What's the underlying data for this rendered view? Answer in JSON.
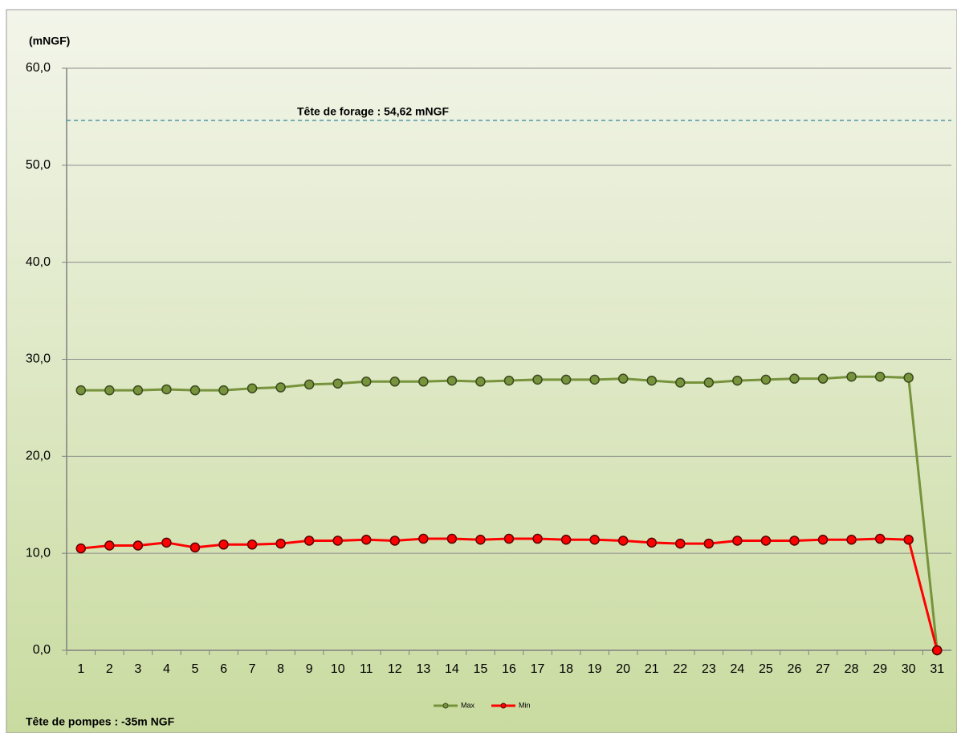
{
  "chart_data": {
    "type": "line",
    "y_axis_label": "(mNGF)",
    "categories": [
      "1",
      "2",
      "3",
      "4",
      "5",
      "6",
      "7",
      "8",
      "9",
      "10",
      "11",
      "12",
      "13",
      "14",
      "15",
      "16",
      "17",
      "18",
      "19",
      "20",
      "21",
      "22",
      "23",
      "24",
      "25",
      "26",
      "27",
      "28",
      "29",
      "30",
      "31"
    ],
    "series": [
      {
        "name": "Max",
        "color": "#77933c",
        "values": [
          26.8,
          26.8,
          26.8,
          26.9,
          26.8,
          26.8,
          27.0,
          27.1,
          27.4,
          27.5,
          27.7,
          27.7,
          27.7,
          27.8,
          27.7,
          27.8,
          27.9,
          27.9,
          27.9,
          28.0,
          27.8,
          27.6,
          27.6,
          27.8,
          27.9,
          28.0,
          28.0,
          28.2,
          28.2,
          28.1,
          0
        ]
      },
      {
        "name": "Min",
        "color": "#ff0000",
        "values": [
          10.5,
          10.8,
          10.8,
          11.1,
          10.6,
          10.9,
          10.9,
          11.0,
          11.3,
          11.3,
          11.4,
          11.3,
          11.5,
          11.5,
          11.4,
          11.5,
          11.5,
          11.4,
          11.4,
          11.3,
          11.1,
          11.0,
          11.0,
          11.3,
          11.3,
          11.3,
          11.4,
          11.4,
          11.5,
          11.4,
          0
        ]
      }
    ],
    "ylim": [
      0,
      60
    ],
    "yticks": [
      {
        "value": 0,
        "label": "0,0"
      },
      {
        "value": 10,
        "label": "10,0"
      },
      {
        "value": 20,
        "label": "20,0"
      },
      {
        "value": 30,
        "label": "30,0"
      },
      {
        "value": 40,
        "label": "40,0"
      },
      {
        "value": 50,
        "label": "50,0"
      },
      {
        "value": 60,
        "label": "60,0"
      }
    ],
    "grid": true,
    "reference_line": {
      "value": 54.62,
      "label": "Tête de forage : 54,62 mNGF",
      "color": "#31859c"
    },
    "footnote": "Tête de pompes :  -35m NGF",
    "legend": "bottom"
  }
}
